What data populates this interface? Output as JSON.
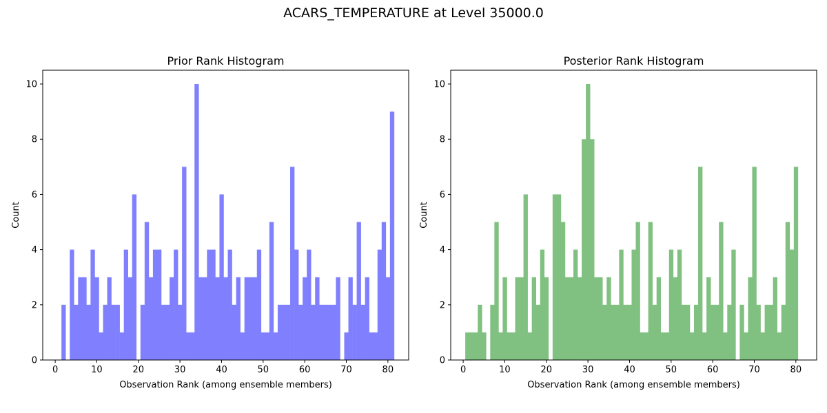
{
  "figure": {
    "suptitle": "ACARS_TEMPERATURE at Level 35000.0"
  },
  "chart_data": [
    {
      "type": "bar",
      "title": "Prior Rank Histogram",
      "xlabel": "Observation Rank (among ensemble members)",
      "ylabel": "Count",
      "color": "#8080ff",
      "xlim": [
        -3,
        85
      ],
      "ylim": [
        0,
        10.5
      ],
      "xticks": [
        0,
        10,
        20,
        30,
        40,
        50,
        60,
        70,
        80
      ],
      "yticks": [
        0,
        2,
        4,
        6,
        8,
        10
      ],
      "grid": false,
      "x": [
        1,
        2,
        3,
        4,
        5,
        6,
        7,
        8,
        9,
        10,
        11,
        12,
        13,
        14,
        15,
        16,
        17,
        18,
        19,
        20,
        21,
        22,
        23,
        24,
        25,
        26,
        27,
        28,
        29,
        30,
        31,
        32,
        33,
        34,
        35,
        36,
        37,
        38,
        39,
        40,
        41,
        42,
        43,
        44,
        45,
        46,
        47,
        48,
        49,
        50,
        51,
        52,
        53,
        54,
        55,
        56,
        57,
        58,
        59,
        60,
        61,
        62,
        63,
        64,
        65,
        66,
        67,
        68,
        69,
        70,
        71,
        72,
        73,
        74,
        75,
        76,
        77,
        78,
        79,
        80,
        81
      ],
      "values": [
        0,
        2,
        0,
        4,
        2,
        3,
        3,
        2,
        4,
        3,
        1,
        2,
        3,
        2,
        2,
        1,
        4,
        3,
        6,
        0,
        2,
        5,
        3,
        4,
        4,
        2,
        2,
        3,
        4,
        2,
        7,
        1,
        1,
        10,
        3,
        3,
        4,
        4,
        3,
        6,
        3,
        4,
        2,
        3,
        1,
        3,
        3,
        3,
        4,
        1,
        1,
        5,
        1,
        2,
        2,
        2,
        7,
        4,
        2,
        3,
        4,
        2,
        3,
        2,
        2,
        2,
        2,
        3,
        0,
        1,
        3,
        2,
        5,
        2,
        3,
        1,
        1,
        4,
        5,
        3,
        9
      ]
    },
    {
      "type": "bar",
      "title": "Posterior Rank Histogram",
      "xlabel": "Observation Rank (among ensemble members)",
      "ylabel": "Count",
      "color": "#80c080",
      "xlim": [
        -3,
        85
      ],
      "ylim": [
        0,
        10.5
      ],
      "xticks": [
        0,
        10,
        20,
        30,
        40,
        50,
        60,
        70,
        80
      ],
      "yticks": [
        0,
        2,
        4,
        6,
        8,
        10
      ],
      "grid": false,
      "x": [
        1,
        2,
        3,
        4,
        5,
        6,
        7,
        8,
        9,
        10,
        11,
        12,
        13,
        14,
        15,
        16,
        17,
        18,
        19,
        20,
        21,
        22,
        23,
        24,
        25,
        26,
        27,
        28,
        29,
        30,
        31,
        32,
        33,
        34,
        35,
        36,
        37,
        38,
        39,
        40,
        41,
        42,
        43,
        44,
        45,
        46,
        47,
        48,
        49,
        50,
        51,
        52,
        53,
        54,
        55,
        56,
        57,
        58,
        59,
        60,
        61,
        62,
        63,
        64,
        65,
        66,
        67,
        68,
        69,
        70,
        71,
        72,
        73,
        74,
        75,
        76,
        77,
        78,
        79,
        80,
        81
      ],
      "values": [
        1,
        1,
        1,
        2,
        1,
        0,
        2,
        5,
        1,
        3,
        1,
        1,
        3,
        3,
        6,
        1,
        3,
        2,
        4,
        3,
        0,
        6,
        6,
        5,
        3,
        3,
        4,
        3,
        8,
        10,
        8,
        3,
        3,
        2,
        3,
        2,
        2,
        4,
        2,
        2,
        4,
        5,
        1,
        1,
        5,
        2,
        3,
        1,
        1,
        4,
        3,
        4,
        2,
        2,
        1,
        2,
        7,
        1,
        3,
        2,
        2,
        5,
        1,
        2,
        4,
        0,
        2,
        1,
        3,
        7,
        2,
        1,
        2,
        2,
        3,
        1,
        2,
        5,
        4,
        7,
        0
      ]
    }
  ]
}
